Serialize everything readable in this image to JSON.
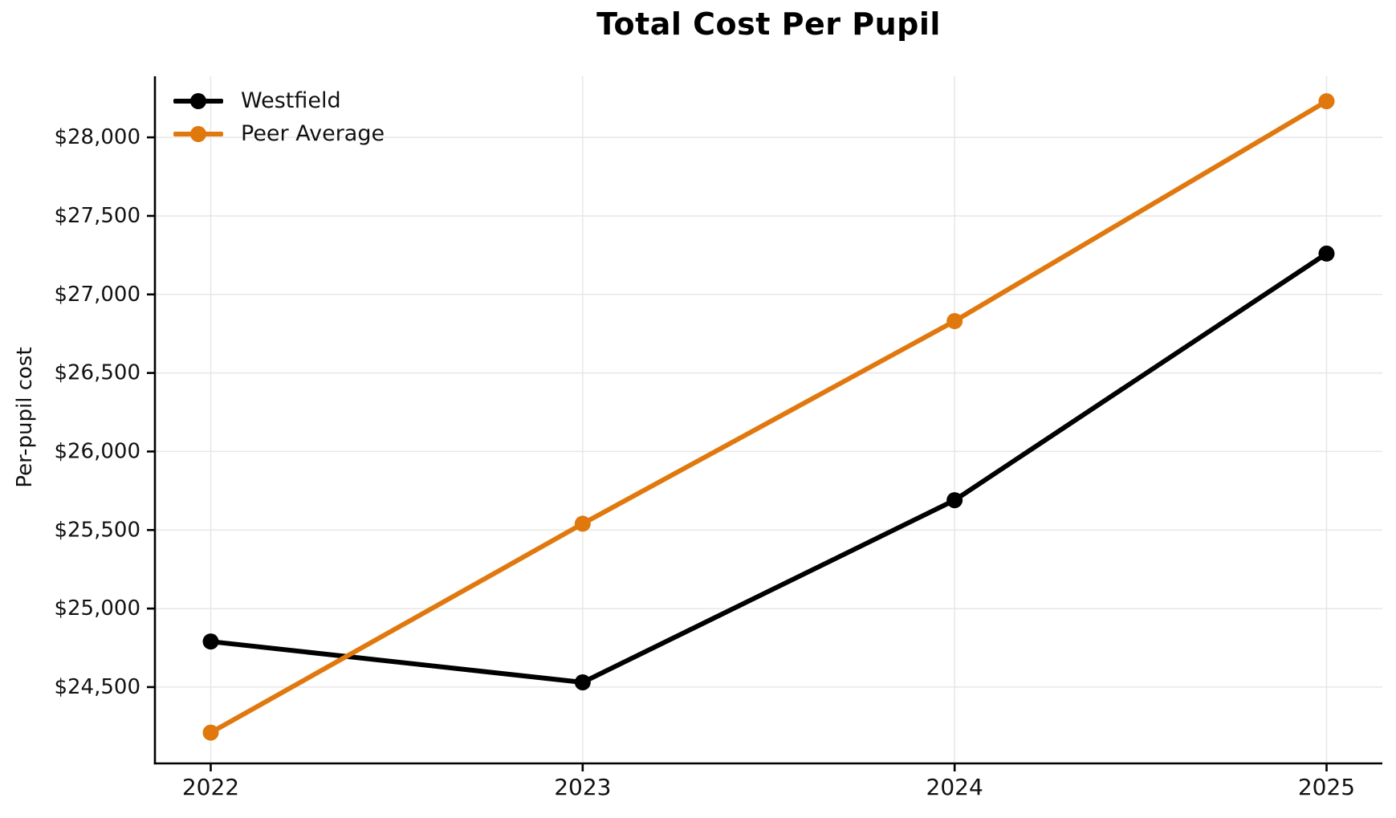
{
  "chart_data": {
    "type": "line",
    "title": "Total Cost Per Pupil",
    "xlabel": "",
    "ylabel": "Per-pupil cost",
    "x": [
      2022,
      2023,
      2024,
      2025
    ],
    "x_tick_labels": [
      "2022",
      "2023",
      "2024",
      "2025"
    ],
    "series": [
      {
        "name": "Westfield",
        "color": "#000000",
        "values": [
          24790,
          24530,
          25690,
          27260
        ]
      },
      {
        "name": "Peer Average",
        "color": "#E0780E",
        "values": [
          24210,
          25540,
          26830,
          28230
        ]
      }
    ],
    "yticks": [
      {
        "value": 24500,
        "label": "$24,500"
      },
      {
        "value": 25000,
        "label": "$25,000"
      },
      {
        "value": 25500,
        "label": "$25,500"
      },
      {
        "value": 26000,
        "label": "$26,000"
      },
      {
        "value": 26500,
        "label": "$26,500"
      },
      {
        "value": 27000,
        "label": "$27,000"
      },
      {
        "value": 27500,
        "label": "$27,500"
      },
      {
        "value": 28000,
        "label": "$28,000"
      }
    ],
    "ylim": [
      24014,
      28389
    ],
    "xlim": [
      2021.85,
      2025.15
    ],
    "grid": true,
    "grid_color": "#e7e7e7",
    "axis_color": "#000000",
    "text_color": "#111111",
    "legend_position": "upper-left"
  }
}
